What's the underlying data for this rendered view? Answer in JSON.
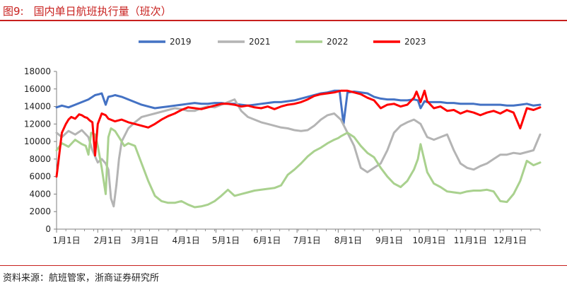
{
  "header": {
    "figure_label": "图9:",
    "title": "国内单日航班执行量（班次）"
  },
  "footer": {
    "source": "资料来源：航班管家，浙商证券研究所"
  },
  "chart_data": {
    "type": "line",
    "title": "国内单日航班执行量（班次）",
    "xlabel": "",
    "ylabel": "",
    "ylim": [
      0,
      18000
    ],
    "yticks": [
      0,
      2000,
      4000,
      6000,
      8000,
      10000,
      12000,
      14000,
      16000,
      18000
    ],
    "xlim": [
      1,
      365
    ],
    "xtick_labels": [
      "1月1日",
      "2月1日",
      "3月1日",
      "4月1日",
      "5月1日",
      "6月1日",
      "7月1日",
      "8月1日",
      "9月1日",
      "10月1日",
      "11月1日",
      "12月1日"
    ],
    "xtick_days": [
      1,
      32,
      60,
      91,
      121,
      152,
      182,
      213,
      244,
      274,
      305,
      335
    ],
    "grid": false,
    "legend_position": "top-center",
    "series": [
      {
        "name": "2019",
        "color": "#4472c4",
        "x": [
          1,
          5,
          10,
          15,
          20,
          25,
          30,
          33,
          35,
          38,
          40,
          43,
          45,
          50,
          55,
          60,
          65,
          70,
          75,
          80,
          85,
          90,
          95,
          100,
          105,
          110,
          115,
          120,
          125,
          130,
          135,
          140,
          145,
          150,
          155,
          160,
          165,
          170,
          175,
          180,
          185,
          190,
          195,
          200,
          205,
          210,
          214,
          217,
          220,
          225,
          230,
          235,
          240,
          245,
          250,
          255,
          260,
          265,
          270,
          273,
          275,
          278,
          280,
          285,
          290,
          295,
          300,
          305,
          310,
          315,
          320,
          325,
          330,
          335,
          340,
          345,
          350,
          355,
          360,
          365
        ],
        "y": [
          13900,
          14100,
          13900,
          14200,
          14500,
          14800,
          15300,
          15400,
          15500,
          14200,
          15100,
          15200,
          15300,
          15100,
          14800,
          14500,
          14200,
          14000,
          13800,
          13900,
          14000,
          14100,
          14200,
          14300,
          14400,
          14300,
          14300,
          14400,
          14400,
          14300,
          14300,
          14200,
          14100,
          14200,
          14300,
          14400,
          14500,
          14500,
          14600,
          14700,
          14900,
          15100,
          15300,
          15500,
          15600,
          15800,
          15800,
          12000,
          15600,
          15700,
          15600,
          15500,
          15100,
          14900,
          14800,
          14800,
          14700,
          14700,
          14800,
          14700,
          13800,
          14600,
          14500,
          14500,
          14500,
          14400,
          14400,
          14300,
          14300,
          14300,
          14200,
          14200,
          14200,
          14200,
          14100,
          14100,
          14200,
          14300,
          14100,
          14200
        ]
      },
      {
        "name": "2021",
        "color": "#b4b4b4",
        "x": [
          1,
          5,
          10,
          15,
          20,
          25,
          28,
          32,
          35,
          38,
          40,
          42,
          44,
          46,
          48,
          50,
          55,
          60,
          65,
          70,
          75,
          80,
          85,
          90,
          95,
          100,
          105,
          110,
          115,
          120,
          125,
          130,
          135,
          140,
          145,
          150,
          155,
          160,
          165,
          170,
          175,
          180,
          185,
          190,
          195,
          200,
          205,
          210,
          215,
          220,
          225,
          230,
          235,
          240,
          245,
          250,
          255,
          260,
          265,
          270,
          275,
          280,
          285,
          290,
          295,
          300,
          305,
          310,
          315,
          320,
          325,
          330,
          335,
          340,
          345,
          350,
          355,
          360,
          365
        ],
        "y": [
          11000,
          10500,
          11200,
          10800,
          11300,
          10500,
          9000,
          7600,
          8000,
          7500,
          6800,
          3500,
          2600,
          5000,
          8000,
          10000,
          11500,
          12200,
          12800,
          13000,
          13200,
          13400,
          13600,
          13800,
          13700,
          13500,
          13500,
          13800,
          14000,
          13900,
          14200,
          14500,
          14800,
          13500,
          12800,
          12500,
          12200,
          12000,
          11800,
          11600,
          11500,
          11300,
          11200,
          11300,
          11800,
          12500,
          13000,
          13200,
          12500,
          11000,
          9500,
          7000,
          6500,
          7000,
          7500,
          9000,
          11000,
          11800,
          12200,
          12500,
          12000,
          10500,
          10200,
          10500,
          10800,
          9000,
          7500,
          7000,
          6800,
          7200,
          7500,
          8000,
          8500,
          8500,
          8700,
          8600,
          8800,
          9000,
          10800
        ]
      },
      {
        "name": "2022",
        "color": "#a9d18e",
        "x": [
          1,
          5,
          10,
          15,
          20,
          23,
          25,
          27,
          30,
          32,
          35,
          38,
          40,
          42,
          45,
          48,
          50,
          52,
          55,
          60,
          65,
          70,
          75,
          80,
          85,
          90,
          95,
          100,
          105,
          110,
          115,
          120,
          125,
          130,
          135,
          140,
          145,
          150,
          155,
          160,
          165,
          170,
          175,
          180,
          185,
          190,
          195,
          200,
          205,
          210,
          213,
          215,
          220,
          225,
          230,
          235,
          240,
          245,
          250,
          255,
          260,
          265,
          270,
          273,
          275,
          280,
          285,
          290,
          295,
          300,
          305,
          310,
          315,
          320,
          325,
          330,
          335,
          340,
          345,
          350,
          355,
          360,
          365
        ],
        "y": [
          9000,
          9800,
          9400,
          10200,
          9700,
          9500,
          8500,
          11000,
          10800,
          9500,
          7000,
          4000,
          10500,
          11500,
          11200,
          10500,
          10000,
          9500,
          9800,
          9500,
          7500,
          5500,
          3800,
          3200,
          3000,
          3000,
          3200,
          2800,
          2500,
          2600,
          2800,
          3200,
          3800,
          4500,
          3800,
          4000,
          4200,
          4400,
          4500,
          4600,
          4700,
          5000,
          6200,
          6800,
          7500,
          8300,
          8900,
          9300,
          9800,
          10200,
          10400,
          10600,
          11000,
          10500,
          9500,
          8700,
          8200,
          7000,
          6000,
          5200,
          4800,
          5500,
          6800,
          8000,
          9700,
          6500,
          5200,
          4800,
          4300,
          4200,
          4100,
          4300,
          4400,
          4400,
          4500,
          4300,
          3200,
          3100,
          4000,
          5500,
          7800,
          7300,
          7600
        ]
      },
      {
        "name": "2023",
        "color": "#ff0000",
        "x": [
          1,
          3,
          5,
          8,
          10,
          12,
          15,
          18,
          20,
          22,
          24,
          26,
          28,
          30,
          32,
          35,
          38,
          40,
          45,
          50,
          55,
          60,
          65,
          70,
          75,
          80,
          85,
          90,
          95,
          100,
          105,
          110,
          115,
          120,
          125,
          130,
          135,
          140,
          145,
          150,
          155,
          160,
          165,
          170,
          175,
          180,
          185,
          190,
          195,
          200,
          205,
          210,
          215,
          220,
          225,
          230,
          235,
          240,
          245,
          250,
          255,
          260,
          265,
          270,
          272,
          275,
          278,
          280,
          285,
          290,
          295,
          300,
          305,
          310,
          315,
          320,
          325,
          330,
          335,
          340,
          345,
          350,
          355,
          360,
          365
        ],
        "y": [
          6000,
          8500,
          11000,
          12000,
          12500,
          12800,
          12600,
          13100,
          13000,
          12800,
          12700,
          12400,
          12200,
          8400,
          12000,
          13200,
          13000,
          12600,
          12300,
          12500,
          12200,
          12000,
          11800,
          11600,
          12000,
          12500,
          12900,
          13200,
          13600,
          13900,
          13800,
          13700,
          13900,
          14100,
          14300,
          14300,
          14200,
          14000,
          14100,
          13900,
          13800,
          14000,
          13700,
          14000,
          14200,
          14300,
          14500,
          14800,
          15200,
          15400,
          15500,
          15600,
          15800,
          15800,
          15600,
          15400,
          15000,
          14700,
          13800,
          14200,
          14300,
          14000,
          14200,
          15000,
          15700,
          14500,
          15800,
          14600,
          13800,
          14000,
          13500,
          13600,
          13200,
          13500,
          13300,
          13000,
          13300,
          13500,
          13200,
          13600,
          13300,
          11500,
          13800,
          13600,
          13900
        ]
      }
    ]
  }
}
